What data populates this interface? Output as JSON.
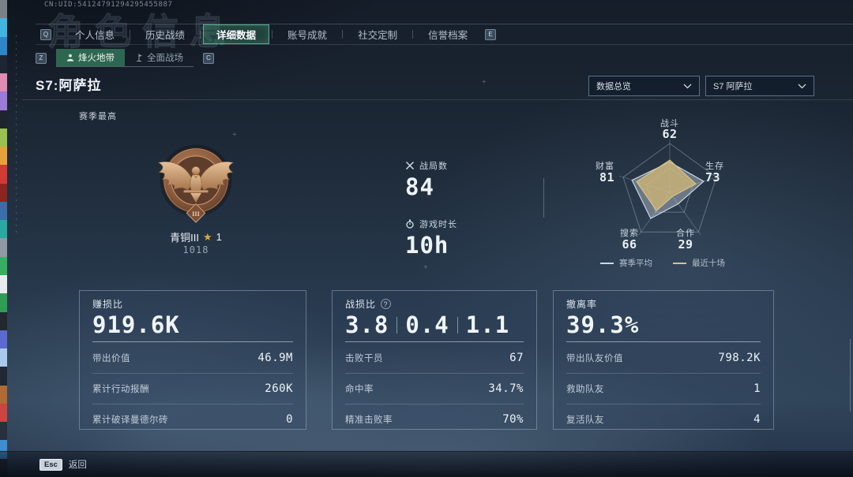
{
  "watermark": {
    "uid": "CN:UID:54124791294295455887",
    "ghost_title": "角色信息"
  },
  "tab_bar": {
    "prev_key": "Q",
    "next_key": "E",
    "tabs": [
      {
        "label": "个人信息",
        "active": false
      },
      {
        "label": "历史战绩",
        "active": false
      },
      {
        "label": "详细数据",
        "active": true
      },
      {
        "label": "账号成就",
        "active": false
      },
      {
        "label": "社交定制",
        "active": false
      },
      {
        "label": "信誉档案",
        "active": false
      }
    ]
  },
  "sub_tab_bar": {
    "prev_key": "Z",
    "next_key": "C",
    "tabs": [
      {
        "label": "烽火地带",
        "icon": "operations-icon",
        "active": true
      },
      {
        "label": "全面战场",
        "icon": "warfare-icon",
        "active": false
      }
    ]
  },
  "header": {
    "title": "S7:阿萨拉",
    "filters": [
      {
        "value": "数据总览"
      },
      {
        "value": "S7 阿萨拉"
      }
    ]
  },
  "season_best": {
    "label": "赛季最高",
    "tier_numeral": "III",
    "rank_name": "青铜III",
    "star_symbol": "★",
    "star_level": "1",
    "rank_points": "1018"
  },
  "overview_stats": [
    {
      "icon": "crossed-swords-icon",
      "label": "战局数",
      "value": "84"
    },
    {
      "icon": "stopwatch-icon",
      "label": "游戏时长",
      "value": "10h"
    }
  ],
  "chart_data": {
    "type": "radar",
    "max": 100,
    "axes": [
      "战斗",
      "生存",
      "合作",
      "搜索",
      "财富"
    ],
    "axis_values": [
      62,
      73,
      29,
      66,
      81
    ],
    "series": [
      {
        "name": "赛季平均",
        "values": [
          62,
          73,
          29,
          66,
          81
        ],
        "color": "#ccd7e1",
        "fill": "rgba(205,216,226,0.40)"
      },
      {
        "name": "最近十场",
        "values": [
          66,
          56,
          10,
          46,
          71
        ],
        "color": "#d8c28a",
        "fill": "rgba(208,182,118,0.78)"
      }
    ],
    "legend_position": "bottom",
    "grid": true
  },
  "cards": [
    {
      "title": "赚损比",
      "value": "919.6K",
      "rows": [
        {
          "label": "带出价值",
          "value": "46.9M"
        },
        {
          "label": "累计行动报酬",
          "value": "260K"
        },
        {
          "label": "累计破译曼德尔砖",
          "value": "0"
        }
      ]
    },
    {
      "title": "战损比",
      "help_symbol": "?",
      "value_parts": [
        "3.8",
        "0.4",
        "1.1"
      ],
      "rows": [
        {
          "label": "击败干员",
          "value": "67"
        },
        {
          "label": "命中率",
          "value": "34.7%"
        },
        {
          "label": "精准击败率",
          "value": "70%"
        }
      ]
    },
    {
      "title": "撤离率",
      "value": "39.3%",
      "rows": [
        {
          "label": "带出队友价值",
          "value": "798.2K"
        },
        {
          "label": "救助队友",
          "value": "1"
        },
        {
          "label": "复活队友",
          "value": "4"
        }
      ]
    }
  ],
  "footer": {
    "key_label": "Esc",
    "action_label": "返回"
  },
  "colors": {
    "accent_green": "#3f8f6d",
    "radar_recent": "#d0b676",
    "radar_average": "#ccd7e1",
    "medal_bronze": "#8a5a3c"
  },
  "edge_strip_colors": [
    "#7a8288",
    "#3fb6e0",
    "#2d86c8",
    "#1c2733",
    "#e08bb0",
    "#9b7ad8",
    "#20242e",
    "#9bc14e",
    "#e8a23a",
    "#d23a34",
    "#8c2420",
    "#3a6ea8",
    "#2aa8a2",
    "#8f9aa4",
    "#36b060",
    "#e8ecef",
    "#2f9e54",
    "#23282f",
    "#5a6ad0",
    "#a9c9ec",
    "#202833",
    "#b06a32",
    "#cc4440",
    "#28303c",
    "#3e8ed0",
    "#222a36"
  ]
}
